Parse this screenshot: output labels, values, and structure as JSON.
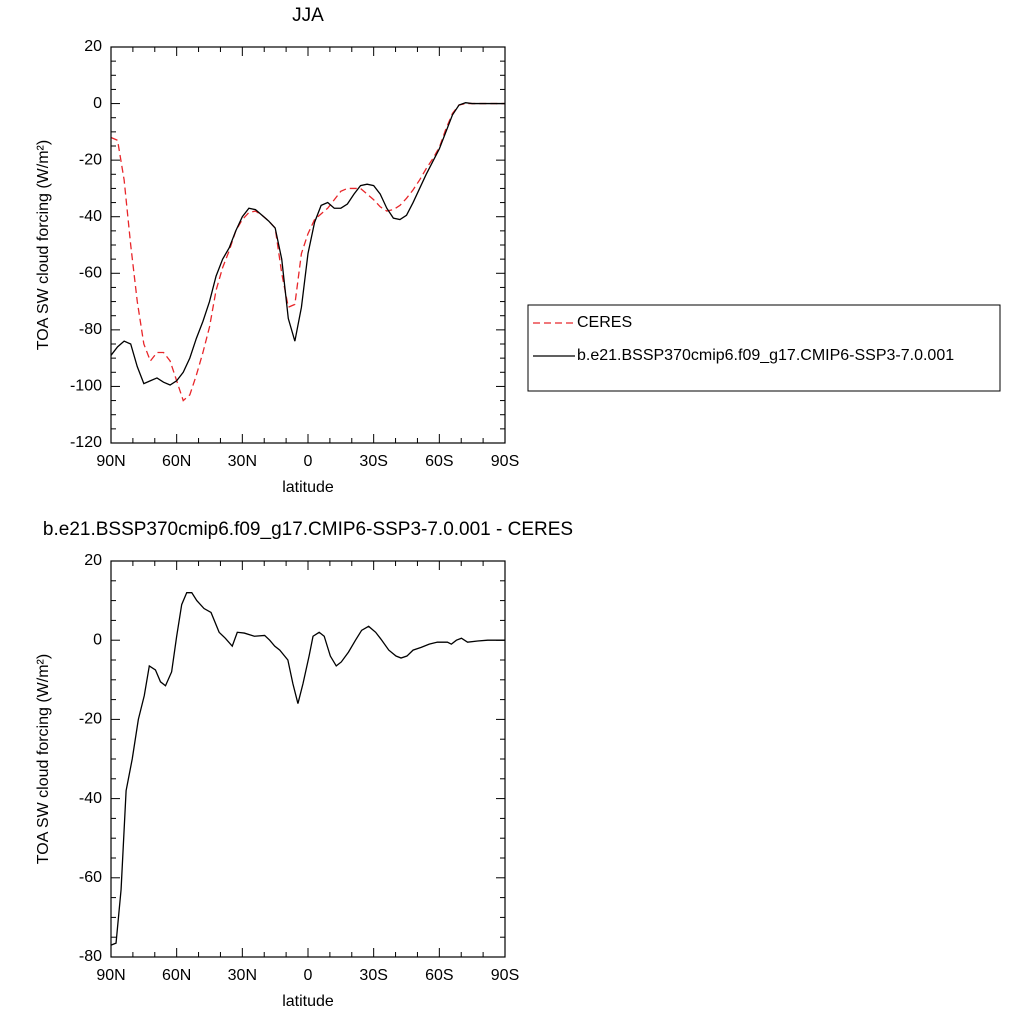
{
  "chart_data": [
    {
      "type": "line",
      "title": "JJA",
      "xlabel": "latitude",
      "ylabel": "TOA SW cloud forcing (W/m²)",
      "x": [
        90,
        87,
        84,
        81,
        78,
        75,
        72,
        69,
        66,
        63,
        60,
        57,
        54,
        51,
        48,
        45,
        42,
        39,
        36,
        33,
        30,
        27,
        24,
        21,
        18,
        15,
        12,
        9,
        6,
        3,
        0,
        -3,
        -6,
        -9,
        -12,
        -15,
        -18,
        -21,
        -24,
        -27,
        -30,
        -33,
        -36,
        -39,
        -42,
        -45,
        -48,
        -51,
        -54,
        -57,
        -60,
        -63,
        -66,
        -69,
        -72,
        -75,
        -80,
        -85,
        -90
      ],
      "series": [
        {
          "name": "CERES",
          "color": "#e8262a",
          "linestyle": "dashed",
          "values": [
            -12,
            -13,
            -27,
            -50,
            -70,
            -85,
            -91,
            -88,
            -88,
            -91,
            -98,
            -105,
            -103,
            -96,
            -88,
            -79,
            -66,
            -58,
            -52,
            -45,
            -41,
            -38.5,
            -38,
            -39.5,
            -41.5,
            -44,
            -60,
            -72,
            -71,
            -53,
            -46,
            -41,
            -39,
            -37,
            -34,
            -31,
            -30,
            -30,
            -30,
            -32,
            -34,
            -36.5,
            -38,
            -37.5,
            -36,
            -33.5,
            -30.5,
            -27,
            -23,
            -19.5,
            -15.5,
            -9,
            -3.5,
            -0.5,
            0,
            0,
            0,
            0,
            0
          ]
        },
        {
          "name": "b.e21.BSSP370cmip6.f09_g17.CMIP6-SSP3-7.0.001",
          "color": "#000000",
          "linestyle": "solid",
          "values": [
            -89,
            -86,
            -84,
            -85,
            -93,
            -99,
            -98,
            -97,
            -98.5,
            -99.5,
            -98,
            -95,
            -90,
            -83,
            -77,
            -70,
            -61,
            -55,
            -51,
            -45,
            -40,
            -37,
            -37.5,
            -39.5,
            -41.5,
            -44,
            -55,
            -76,
            -84,
            -72,
            -53,
            -42,
            -36,
            -35,
            -37,
            -37,
            -35.5,
            -32,
            -29,
            -28.5,
            -29,
            -32,
            -37,
            -40.5,
            -41,
            -39.5,
            -35,
            -30,
            -25,
            -20.5,
            -16,
            -10,
            -4,
            -0.5,
            0.3,
            0,
            0,
            0,
            0
          ]
        }
      ],
      "xlim": [
        90,
        -90
      ],
      "xticks": [
        {
          "value": 90,
          "label": "90N"
        },
        {
          "value": 60,
          "label": "60N"
        },
        {
          "value": 30,
          "label": "30N"
        },
        0,
        {
          "value": -30,
          "label": "30S"
        },
        {
          "value": -60,
          "label": "60S"
        },
        {
          "value": -90,
          "label": "90S"
        }
      ],
      "ylim": [
        -120,
        20
      ],
      "yticks": [
        -120,
        -100,
        -80,
        -60,
        -40,
        -20,
        0,
        20
      ],
      "legend": "right"
    },
    {
      "type": "line",
      "title": "b.e21.BSSP370cmip6.f09_g17.CMIP6-SSP3-7.0.001 - CERES",
      "xlabel": "latitude",
      "ylabel": "TOA SW cloud forcing (W/m²)",
      "x": [
        90,
        87.7,
        85.4,
        83.1,
        80.3,
        77.5,
        74.8,
        72.5,
        69.7,
        67.4,
        65.1,
        62.3,
        60,
        57.7,
        55.4,
        53.1,
        50.8,
        47.5,
        44.3,
        40.6,
        37.8,
        34.6,
        32.3,
        29.1,
        24.5,
        19.8,
        17.5,
        15.2,
        12.9,
        9.2,
        6.9,
        4.6,
        2.3,
        -0.5,
        -2.3,
        -5.1,
        -7.4,
        -10.2,
        -12.9,
        -15.2,
        -18.5,
        -21.7,
        -24.5,
        -27.7,
        -30.9,
        -33.7,
        -36.9,
        -40.2,
        -42.5,
        -45.2,
        -48,
        -51.7,
        -55.4,
        -59.1,
        -63.7,
        -65.5,
        -67.8,
        -70.1,
        -72.9,
        -77.5,
        -82.1,
        -90
      ],
      "series": [
        {
          "color": "#000000",
          "linestyle": "solid",
          "values": [
            -77,
            -76.5,
            -63,
            -38,
            -30,
            -20,
            -14,
            -6.5,
            -7.5,
            -10.5,
            -11.5,
            -8,
            1,
            9,
            12,
            12,
            10,
            8,
            7,
            2,
            0.5,
            -1.5,
            2,
            1.8,
            1,
            1.2,
            0,
            -1.5,
            -2.5,
            -5,
            -11,
            -16,
            -11,
            -4,
            1,
            2,
            1,
            -4,
            -6.5,
            -5.5,
            -3,
            0,
            2.5,
            3.5,
            2,
            0,
            -2.5,
            -4,
            -4.5,
            -4,
            -2.5,
            -1.8,
            -1,
            -0.5,
            -0.5,
            -1,
            0,
            0.5,
            -0.5,
            -0.2,
            0,
            0
          ]
        }
      ],
      "xlim": [
        90,
        -90
      ],
      "xticks": [
        {
          "value": 90,
          "label": "90N"
        },
        {
          "value": 60,
          "label": "60N"
        },
        {
          "value": 30,
          "label": "30N"
        },
        0,
        {
          "value": -30,
          "label": "30S"
        },
        {
          "value": -60,
          "label": "60S"
        },
        {
          "value": -90,
          "label": "90S"
        }
      ],
      "ylim": [
        -80,
        20
      ],
      "yticks": [
        -80,
        -60,
        -40,
        -20,
        0,
        20
      ]
    }
  ]
}
